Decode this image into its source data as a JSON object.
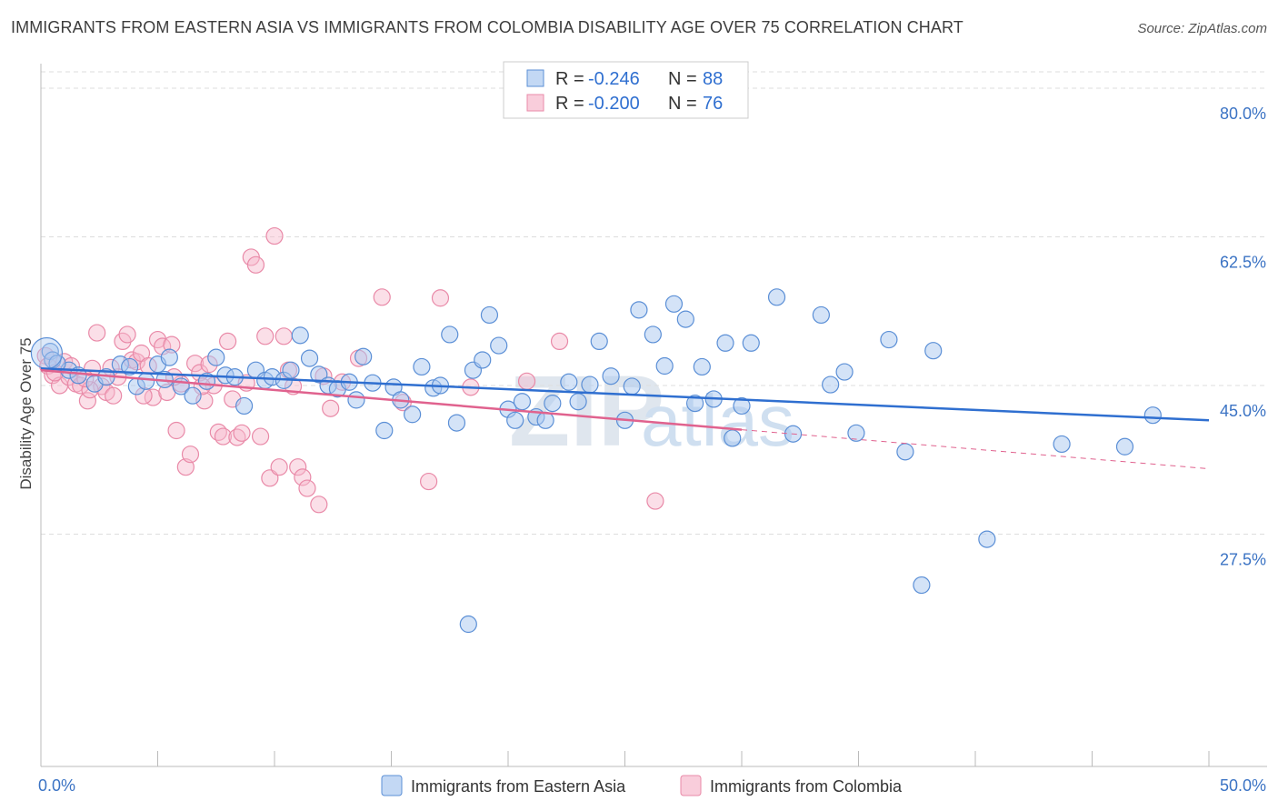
{
  "title": "IMMIGRANTS FROM EASTERN ASIA VS IMMIGRANTS FROM COLOMBIA DISABILITY AGE OVER 75 CORRELATION CHART",
  "source": "Source: ZipAtlas.com",
  "watermark": {
    "zip": "ZIP",
    "atlas": "atlas"
  },
  "colors": {
    "blue_fill": "#a9c8f0",
    "blue_stroke": "#5b8fd6",
    "blue_line": "#2f6fd0",
    "pink_fill": "#f7b8cc",
    "pink_stroke": "#e98aa8",
    "pink_line": "#e0628e",
    "axis_label": "#3b73c4",
    "grid": "#dddddd"
  },
  "legend_top": [
    {
      "r_label": "R =",
      "r": "-0.246",
      "n_label": "N =",
      "n": "88",
      "color": "blue"
    },
    {
      "r_label": "R =",
      "r": "-0.200",
      "n_label": "N =",
      "n": "76",
      "color": "pink"
    }
  ],
  "chart_data": {
    "type": "scatter",
    "title": "IMMIGRANTS FROM EASTERN ASIA VS IMMIGRANTS FROM COLOMBIA DISABILITY AGE OVER 75 CORRELATION CHART",
    "xlabel": "",
    "ylabel": "Disability Age Over 75",
    "xlim": [
      0,
      50
    ],
    "ylim": [
      8.5,
      86
    ],
    "x_tick_labels": [
      "0.0%",
      "50.0%"
    ],
    "y_ticks": [
      27.5,
      45.0,
      62.5,
      80.0
    ],
    "y_tick_labels": [
      "27.5%",
      "45.0%",
      "62.5%",
      "80.0%"
    ],
    "grid": true,
    "legend_position": "bottom",
    "series": [
      {
        "name": "Immigrants from Eastern Asia",
        "color": "blue",
        "trend": {
          "x": [
            0,
            50
          ],
          "y": [
            47.0,
            40.9
          ]
        },
        "points": [
          [
            0.4,
            49.0
          ],
          [
            0.5,
            48.0
          ],
          [
            1.2,
            46.8
          ],
          [
            1.6,
            46.2
          ],
          [
            2.3,
            45.2
          ],
          [
            3.4,
            47.5
          ],
          [
            3.8,
            47.2
          ],
          [
            4.1,
            44.9
          ],
          [
            4.5,
            45.5
          ],
          [
            5.0,
            47.5
          ],
          [
            5.3,
            45.7
          ],
          [
            5.5,
            48.3
          ],
          [
            6.0,
            44.9
          ],
          [
            6.5,
            43.8
          ],
          [
            7.1,
            45.5
          ],
          [
            7.5,
            48.3
          ],
          [
            7.9,
            46.2
          ],
          [
            8.3,
            46.0
          ],
          [
            8.7,
            42.6
          ],
          [
            9.2,
            46.8
          ],
          [
            9.6,
            45.6
          ],
          [
            9.9,
            46.0
          ],
          [
            10.4,
            45.6
          ],
          [
            10.7,
            46.8
          ],
          [
            11.1,
            50.9
          ],
          [
            11.5,
            48.2
          ],
          [
            11.9,
            46.3
          ],
          [
            12.3,
            45.0
          ],
          [
            12.7,
            44.6
          ],
          [
            13.2,
            45.4
          ],
          [
            13.5,
            43.3
          ],
          [
            13.8,
            48.4
          ],
          [
            14.2,
            45.3
          ],
          [
            14.7,
            39.7
          ],
          [
            15.1,
            44.8
          ],
          [
            15.4,
            43.3
          ],
          [
            15.9,
            41.6
          ],
          [
            16.3,
            47.2
          ],
          [
            16.8,
            44.7
          ],
          [
            17.1,
            45.0
          ],
          [
            17.5,
            51.0
          ],
          [
            17.8,
            40.6
          ],
          [
            18.5,
            46.8
          ],
          [
            18.9,
            48.0
          ],
          [
            19.2,
            53.3
          ],
          [
            19.6,
            49.7
          ],
          [
            20.0,
            42.2
          ],
          [
            20.3,
            40.9
          ],
          [
            20.6,
            43.1
          ],
          [
            21.2,
            41.3
          ],
          [
            21.6,
            40.9
          ],
          [
            21.9,
            42.9
          ],
          [
            22.6,
            45.4
          ],
          [
            23.0,
            43.1
          ],
          [
            23.5,
            45.1
          ],
          [
            23.9,
            50.2
          ],
          [
            24.4,
            46.1
          ],
          [
            25.0,
            40.9
          ],
          [
            25.3,
            44.9
          ],
          [
            25.6,
            53.9
          ],
          [
            26.2,
            51.0
          ],
          [
            26.7,
            47.3
          ],
          [
            27.1,
            54.6
          ],
          [
            27.6,
            52.8
          ],
          [
            28.0,
            42.9
          ],
          [
            28.3,
            47.2
          ],
          [
            28.8,
            43.4
          ],
          [
            29.3,
            50.0
          ],
          [
            29.6,
            38.8
          ],
          [
            30.0,
            42.6
          ],
          [
            30.4,
            50.0
          ],
          [
            31.5,
            55.4
          ],
          [
            32.2,
            39.3
          ],
          [
            33.4,
            53.3
          ],
          [
            33.8,
            45.1
          ],
          [
            34.4,
            46.6
          ],
          [
            34.9,
            39.4
          ],
          [
            36.3,
            50.4
          ],
          [
            37.0,
            37.2
          ],
          [
            38.2,
            49.1
          ],
          [
            37.7,
            21.5
          ],
          [
            40.5,
            26.9
          ],
          [
            43.7,
            38.1
          ],
          [
            46.4,
            37.8
          ],
          [
            47.6,
            41.5
          ],
          [
            18.3,
            16.9
          ],
          [
            0.7,
            47.6
          ],
          [
            2.8,
            46.0
          ]
        ]
      },
      {
        "name": "Immigrants from Colombia",
        "color": "pink",
        "trend": {
          "x": [
            0,
            30
          ],
          "y": [
            46.8,
            39.8
          ]
        },
        "trend_dashed": {
          "x": [
            30,
            50
          ],
          "y": [
            39.8,
            35.2
          ]
        },
        "points": [
          [
            0.2,
            48.5
          ],
          [
            0.3,
            47.3
          ],
          [
            0.5,
            46.2
          ],
          [
            0.8,
            45.0
          ],
          [
            1.0,
            47.8
          ],
          [
            1.2,
            46.0
          ],
          [
            1.5,
            45.2
          ],
          [
            1.7,
            45.0
          ],
          [
            2.0,
            43.2
          ],
          [
            2.2,
            47.0
          ],
          [
            2.4,
            51.2
          ],
          [
            2.6,
            44.9
          ],
          [
            2.8,
            44.2
          ],
          [
            3.1,
            43.8
          ],
          [
            3.3,
            46.0
          ],
          [
            3.5,
            50.2
          ],
          [
            3.7,
            51.0
          ],
          [
            3.9,
            48.0
          ],
          [
            4.1,
            47.8
          ],
          [
            4.3,
            48.8
          ],
          [
            4.6,
            47.3
          ],
          [
            4.8,
            43.6
          ],
          [
            5.0,
            50.4
          ],
          [
            5.2,
            49.6
          ],
          [
            5.4,
            44.2
          ],
          [
            5.6,
            49.8
          ],
          [
            5.8,
            39.7
          ],
          [
            6.0,
            45.2
          ],
          [
            6.2,
            35.4
          ],
          [
            6.4,
            36.9
          ],
          [
            6.6,
            47.6
          ],
          [
            6.8,
            46.5
          ],
          [
            7.0,
            43.2
          ],
          [
            7.2,
            47.5
          ],
          [
            7.4,
            45.0
          ],
          [
            7.6,
            39.5
          ],
          [
            7.8,
            39.0
          ],
          [
            8.0,
            50.2
          ],
          [
            8.2,
            43.4
          ],
          [
            8.4,
            38.9
          ],
          [
            8.6,
            39.4
          ],
          [
            8.8,
            45.3
          ],
          [
            9.0,
            60.1
          ],
          [
            9.2,
            59.2
          ],
          [
            9.4,
            39.0
          ],
          [
            9.6,
            50.8
          ],
          [
            9.8,
            34.1
          ],
          [
            10.0,
            62.6
          ],
          [
            10.2,
            35.4
          ],
          [
            10.4,
            50.8
          ],
          [
            10.6,
            46.8
          ],
          [
            10.8,
            44.9
          ],
          [
            11.0,
            35.4
          ],
          [
            11.2,
            34.2
          ],
          [
            11.4,
            32.9
          ],
          [
            11.9,
            31.0
          ],
          [
            12.1,
            46.1
          ],
          [
            12.4,
            42.3
          ],
          [
            12.9,
            45.4
          ],
          [
            13.6,
            48.2
          ],
          [
            14.6,
            55.4
          ],
          [
            15.5,
            43.0
          ],
          [
            16.6,
            33.7
          ],
          [
            17.1,
            55.3
          ],
          [
            18.4,
            44.8
          ],
          [
            20.8,
            45.5
          ],
          [
            22.2,
            50.2
          ],
          [
            26.3,
            31.4
          ],
          [
            1.3,
            47.3
          ],
          [
            2.1,
            44.5
          ],
          [
            4.4,
            43.8
          ],
          [
            6.9,
            44.9
          ],
          [
            0.6,
            46.5
          ],
          [
            1.9,
            45.8
          ],
          [
            3.0,
            47.1
          ],
          [
            5.7,
            46.0
          ]
        ]
      }
    ]
  }
}
